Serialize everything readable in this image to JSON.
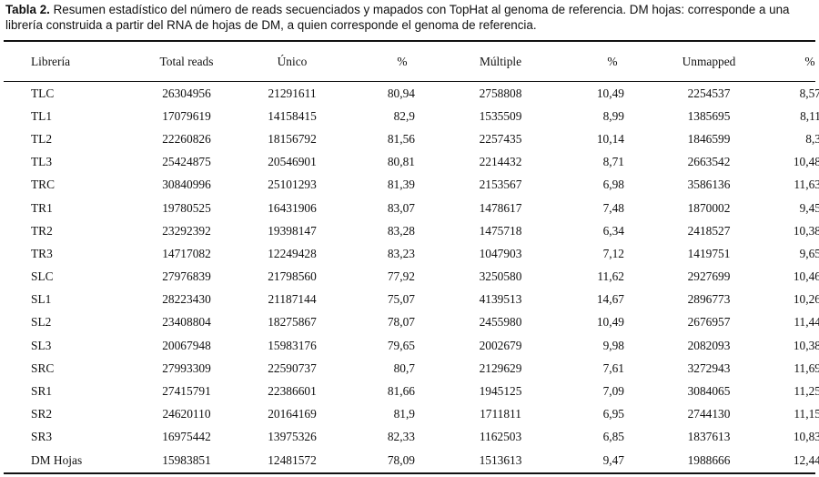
{
  "caption": {
    "label": "Tabla 2.",
    "text": " Resumen estadístico del número de reads secuenciados y mapados con TopHat al genoma de referencia. DM hojas: corresponde a una librería construida a partir del RNA de hojas de DM, a quien corresponde el genoma de referencia."
  },
  "table": {
    "headers": [
      "Librería",
      "Total reads",
      "Único",
      "%",
      "Múltiple",
      "%",
      "Unmapped",
      "%"
    ],
    "rows": [
      [
        "TLC",
        "26304956",
        "21291611",
        "80,94",
        "2758808",
        "10,49",
        "2254537",
        "8,57"
      ],
      [
        "TL1",
        "17079619",
        "14158415",
        "82,9",
        "1535509",
        "8,99",
        "1385695",
        "8,11"
      ],
      [
        "TL2",
        "22260826",
        "18156792",
        "81,56",
        "2257435",
        "10,14",
        "1846599",
        "8,3"
      ],
      [
        "TL3",
        "25424875",
        "20546901",
        "80,81",
        "2214432",
        "8,71",
        "2663542",
        "10,48"
      ],
      [
        "TRC",
        "30840996",
        "25101293",
        "81,39",
        "2153567",
        "6,98",
        "3586136",
        "11,63"
      ],
      [
        "TR1",
        "19780525",
        "16431906",
        "83,07",
        "1478617",
        "7,48",
        "1870002",
        "9,45"
      ],
      [
        "TR2",
        "23292392",
        "19398147",
        "83,28",
        "1475718",
        "6,34",
        "2418527",
        "10,38"
      ],
      [
        "TR3",
        "14717082",
        "12249428",
        "83,23",
        "1047903",
        "7,12",
        "1419751",
        "9,65"
      ],
      [
        "SLC",
        "27976839",
        "21798560",
        "77,92",
        "3250580",
        "11,62",
        "2927699",
        "10,46"
      ],
      [
        "SL1",
        "28223430",
        "21187144",
        "75,07",
        "4139513",
        "14,67",
        "2896773",
        "10,26"
      ],
      [
        "SL2",
        "23408804",
        "18275867",
        "78,07",
        "2455980",
        "10,49",
        "2676957",
        "11,44"
      ],
      [
        "SL3",
        "20067948",
        "15983176",
        "79,65",
        "2002679",
        "9,98",
        "2082093",
        "10,38"
      ],
      [
        "SRC",
        "27993309",
        "22590737",
        "80,7",
        "2129629",
        "7,61",
        "3272943",
        "11,69"
      ],
      [
        "SR1",
        "27415791",
        "22386601",
        "81,66",
        "1945125",
        "7,09",
        "3084065",
        "11,25"
      ],
      [
        "SR2",
        "24620110",
        "20164169",
        "81,9",
        "1711811",
        "6,95",
        "2744130",
        "11,15"
      ],
      [
        "SR3",
        "16975442",
        "13975326",
        "82,33",
        "1162503",
        "6,85",
        "1837613",
        "10,83"
      ],
      [
        "DM Hojas",
        "15983851",
        "12481572",
        "78,09",
        "1513613",
        "9,47",
        "1988666",
        "12,44"
      ]
    ]
  }
}
